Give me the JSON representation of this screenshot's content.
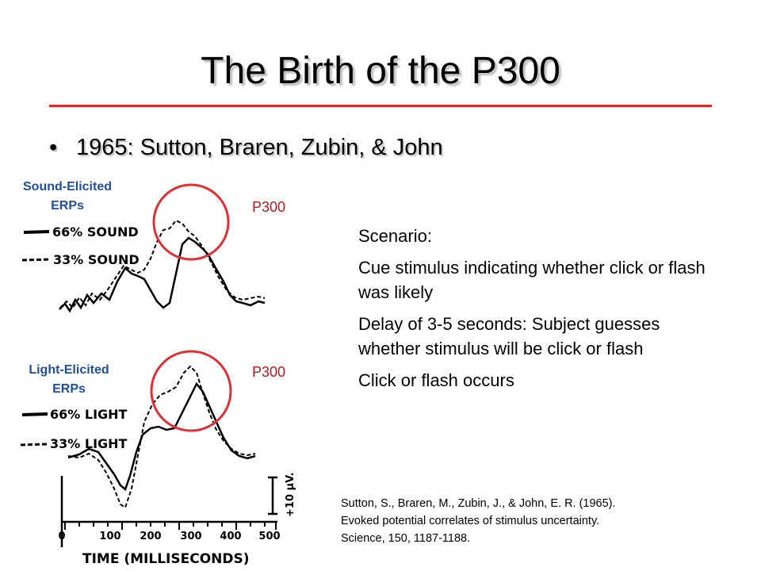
{
  "slide": {
    "title": "The Birth of the P300",
    "bullet": "1965: Sutton, Braren, Zubin, & John"
  },
  "figure": {
    "sound_label": [
      "Sound-Elicited",
      "ERPs"
    ],
    "light_label": [
      "Light-Elicited",
      "ERPs"
    ],
    "p300_top": "P300",
    "p300_bottom": "P300",
    "legend_sound_66": "66% SOUND",
    "legend_sound_33": "33% SOUND",
    "legend_light_66": "66% LIGHT",
    "legend_light_33": "33% LIGHT",
    "scale_label": "+10 µV.",
    "x_ticks": [
      "0",
      "100",
      "200",
      "300",
      "400",
      "500"
    ],
    "x_axis_label": "TIME (MILLISECONDS)",
    "colors": {
      "circle": "#e03036",
      "label_blue": "#1f4e9e",
      "p300_red": "#c0141c"
    }
  },
  "scenario": {
    "heading": "Scenario:",
    "items": [
      "Cue stimulus indicating whether click or flash was likely",
      "Delay of 3-5 seconds: Subject guesses whether stimulus will be click or flash",
      "Click or flash occurs"
    ]
  },
  "citation": [
    "Sutton, S., Braren, M., Zubin, J., & John, E. R. (1965).",
    "Evoked potential correlates of stimulus uncertainty.",
    "Science, 150, 1187-1188."
  ]
}
